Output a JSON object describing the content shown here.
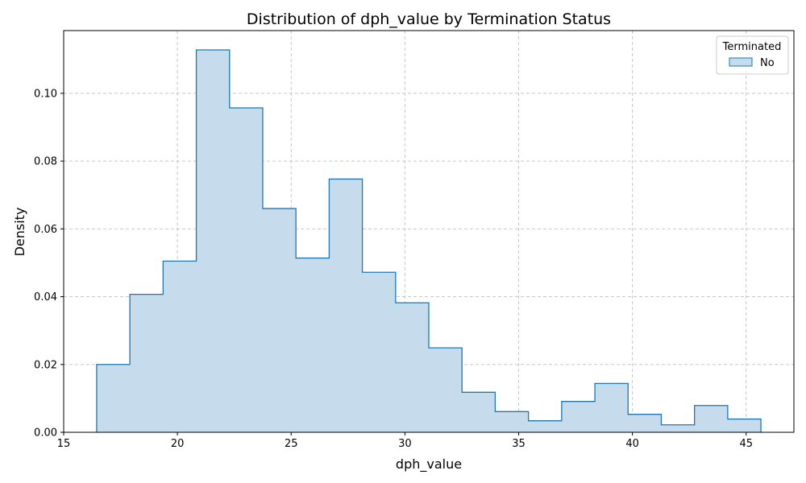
{
  "chart_data": {
    "type": "histogram",
    "title": "Distribution of dph_value by Termination Status",
    "xlabel": "dph_value",
    "ylabel": "Density",
    "xlim": [
      15,
      47.1
    ],
    "ylim": [
      0,
      0.1185
    ],
    "xticks": [
      "15",
      "20",
      "25",
      "30",
      "35",
      "40",
      "45"
    ],
    "yticks": [
      "0.00",
      "0.02",
      "0.04",
      "0.06",
      "0.08",
      "0.10"
    ],
    "grid": true,
    "legend": {
      "title": "Terminated",
      "placement": "top-right"
    },
    "series": [
      {
        "name": "No",
        "color": "#1f77b4",
        "fill": "#c6dbec",
        "bin_edges": [
          16.45,
          17.91,
          19.37,
          20.83,
          22.29,
          23.75,
          25.21,
          26.67,
          28.13,
          29.59,
          31.05,
          32.51,
          33.97,
          35.43,
          36.89,
          38.35,
          39.81,
          41.27,
          42.73,
          44.19,
          45.65
        ],
        "values": [
          0.02,
          0.0407,
          0.0505,
          0.1128,
          0.0957,
          0.066,
          0.0514,
          0.0747,
          0.0472,
          0.0382,
          0.0249,
          0.0118,
          0.0061,
          0.0034,
          0.0091,
          0.0144,
          0.0053,
          0.0022,
          0.0079,
          0.0039
        ]
      }
    ]
  }
}
